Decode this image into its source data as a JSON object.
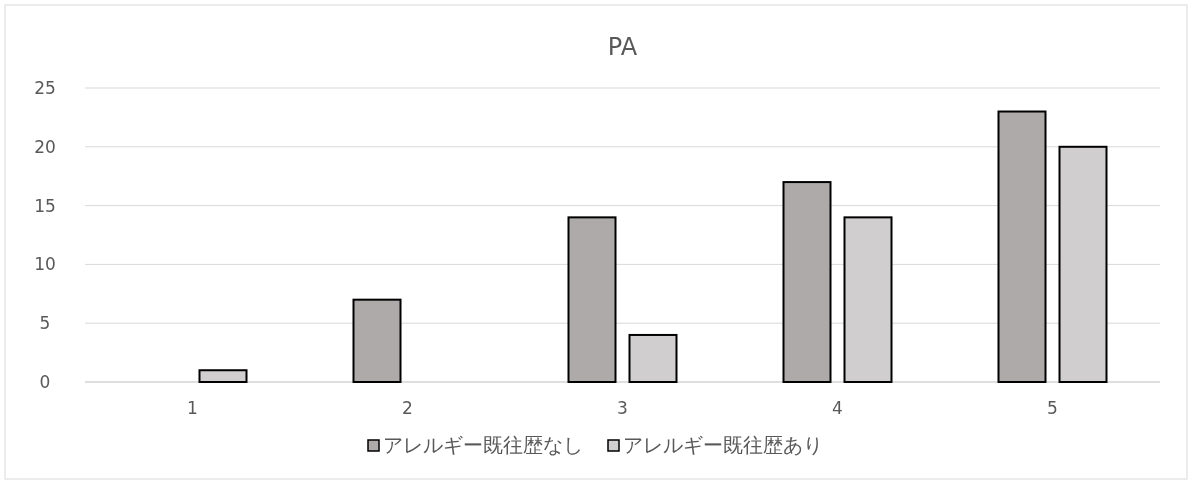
{
  "chart_data": {
    "type": "bar",
    "title": "PA",
    "categories": [
      "1",
      "2",
      "3",
      "4",
      "5"
    ],
    "series": [
      {
        "name": "アレルギー既往歴なし",
        "color": "#aeaaaa",
        "values": [
          0,
          7,
          14,
          17,
          23
        ]
      },
      {
        "name": "アレルギー既往歴あり",
        "color": "#d0cece",
        "values": [
          1,
          0,
          4,
          14,
          20
        ]
      }
    ],
    "ylim": [
      0,
      25
    ],
    "yticks": [
      0,
      5,
      10,
      15,
      20,
      25
    ],
    "grid": "y",
    "legend": "bottom"
  }
}
